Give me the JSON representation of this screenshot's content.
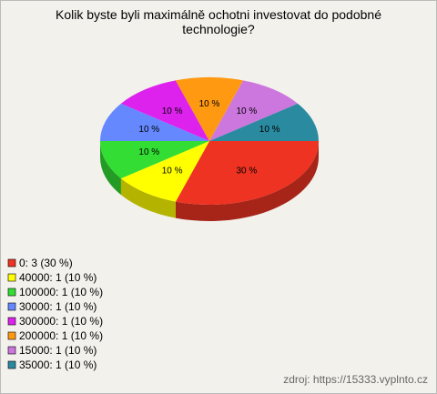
{
  "chart_data": {
    "type": "pie3d",
    "title": "Kolik byste byli maximálně ochotni investovat do podobné technologie?",
    "categories": [
      "0: 3 (30 %)",
      "40000: 1 (10 %)",
      "100000: 1 (10 %)",
      "30000: 1 (10 %)",
      "300000: 1 (10 %)",
      "200000: 1 (10 %)",
      "15000: 1 (10 %)",
      "35000: 1 (10 %)"
    ],
    "values": [
      30,
      10,
      10,
      10,
      10,
      10,
      10,
      10
    ],
    "value_labels": [
      "30 %",
      "10 %",
      "10 %",
      "10 %",
      "10 %",
      "10 %",
      "10 %",
      "10 %"
    ],
    "colors": [
      "#ee3322",
      "#ffff00",
      "#33dd33",
      "#6688ff",
      "#dd22ee",
      "#ff9911",
      "#cc77dd",
      "#2a8aa0"
    ],
    "source": "zdroj: https://15333.vyplnto.cz"
  }
}
